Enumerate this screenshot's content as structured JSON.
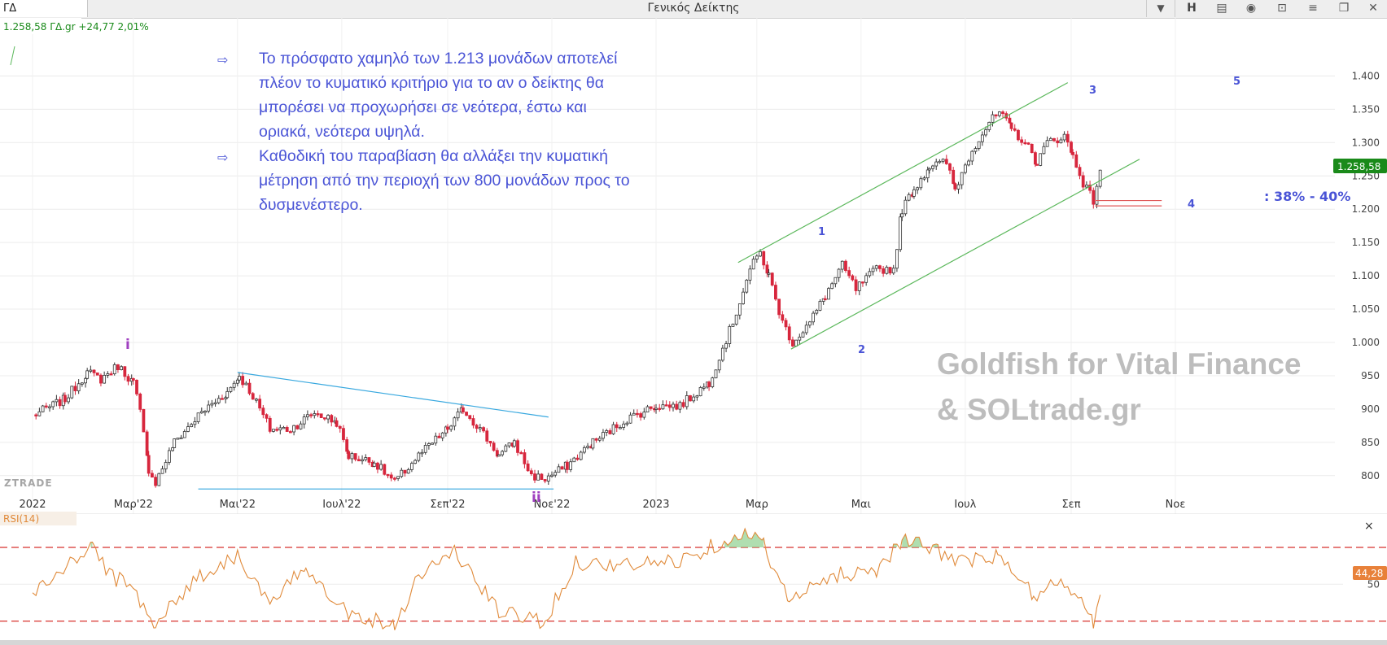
{
  "app": {
    "symbol": "ΓΔ",
    "title": "Γενικός Δείκτης",
    "toolbar": {
      "dropdown_icon": "chevron-down-icon",
      "h_label": "H"
    }
  },
  "colors": {
    "up_candle": "#333333",
    "down_candle": "#d7263d",
    "channel": "#5cb85c",
    "blue_lines": "#38a8df",
    "annotation": "#4a54d6",
    "rsi": "#e08a3a",
    "rsi_fill": "#8fd08f",
    "rsi_bounds": "#d8322f",
    "support": "#e05a5a",
    "watermark": "#bdbdbd",
    "price_badge": "#1a8a1a",
    "rsi_badge": "#e8813a"
  },
  "quote": {
    "text": "1.258,58 ΓΔ.gr +24,77 2,01%"
  },
  "annotations": {
    "paragraph1": [
      "Το πρόσφατο χαμηλό των 1.213 μονάδων αποτελεί",
      "πλέον το κυματικό κριτήριο για το αν ο δείκτης θα",
      "μπορέσει να προχωρήσει σε νεότερα, έστω και",
      "οριακά, νεότερα υψηλά."
    ],
    "paragraph2": [
      "Καθοδική του παραβίαση θα αλλάξει την κυματική",
      "μέτρηση από την περιοχή των 800 μονάδων προς το",
      "δυσμενέστερο."
    ],
    "retracement": ": 38% - 40%",
    "wave_labels": {
      "i": "i",
      "ii": "ii",
      "w1": "1",
      "w2": "2",
      "w3": "3",
      "w4": "4",
      "w5": "5"
    }
  },
  "watermark": {
    "line1": "Goldfish for Vital Finance",
    "line2": "& SOLtrade.gr"
  },
  "logo": "ZTRADE",
  "chart_data": [
    {
      "type": "candlestick",
      "title": "Γενικός Δείκτης",
      "x_ticks": [
        "2022",
        "Μαρ'22",
        "Μαι'22",
        "Ιουλ'22",
        "Σεπ'22",
        "Νοε'22",
        "2023",
        "Μαρ",
        "Μαι",
        "Ιουλ",
        "Σεπ",
        "Νοε"
      ],
      "y_ticks": [
        "1.400",
        "1.350",
        "1.300",
        "1.250",
        "1.200",
        "1.150",
        "1.100",
        "1.050",
        "1.000",
        "950",
        "900",
        "850",
        "800"
      ],
      "ylim": [
        780,
        1420
      ],
      "last_price": "1.258,58",
      "last_value": 1258.58,
      "anchors": [
        [
          "2022-01-01",
          890
        ],
        [
          "2022-01-20",
          915
        ],
        [
          "2022-02-02",
          955
        ],
        [
          "2022-02-10",
          945
        ],
        [
          "2022-02-20",
          965
        ],
        [
          "2022-03-01",
          940
        ],
        [
          "2022-03-05",
          895
        ],
        [
          "2022-03-10",
          810
        ],
        [
          "2022-03-14",
          790
        ],
        [
          "2022-03-25",
          850
        ],
        [
          "2022-04-10",
          895
        ],
        [
          "2022-04-25",
          925
        ],
        [
          "2022-05-02",
          950
        ],
        [
          "2022-05-10",
          920
        ],
        [
          "2022-05-20",
          870
        ],
        [
          "2022-06-01",
          870
        ],
        [
          "2022-06-15",
          895
        ],
        [
          "2022-06-28",
          880
        ],
        [
          "2022-07-05",
          830
        ],
        [
          "2022-07-20",
          820
        ],
        [
          "2022-08-01",
          790
        ],
        [
          "2022-08-15",
          830
        ],
        [
          "2022-09-01",
          870
        ],
        [
          "2022-09-10",
          900
        ],
        [
          "2022-09-20",
          870
        ],
        [
          "2022-10-01",
          830
        ],
        [
          "2022-10-10",
          850
        ],
        [
          "2022-10-20",
          800
        ],
        [
          "2022-10-28",
          795
        ],
        [
          "2022-11-10",
          815
        ],
        [
          "2022-11-25",
          850
        ],
        [
          "2022-12-15",
          885
        ],
        [
          "2023-01-01",
          905
        ],
        [
          "2023-01-15",
          905
        ],
        [
          "2023-02-01",
          940
        ],
        [
          "2023-02-15",
          1030
        ],
        [
          "2023-02-25",
          1110
        ],
        [
          "2023-03-03",
          1135
        ],
        [
          "2023-03-08",
          1100
        ],
        [
          "2023-03-16",
          1030
        ],
        [
          "2023-03-22",
          1000
        ],
        [
          "2023-04-01",
          1030
        ],
        [
          "2023-04-10",
          1070
        ],
        [
          "2023-04-20",
          1115
        ],
        [
          "2023-04-28",
          1080
        ],
        [
          "2023-05-10",
          1110
        ],
        [
          "2023-05-20",
          1110
        ],
        [
          "2023-05-25",
          1200
        ],
        [
          "2023-06-01",
          1230
        ],
        [
          "2023-06-10",
          1265
        ],
        [
          "2023-06-20",
          1270
        ],
        [
          "2023-06-25",
          1230
        ],
        [
          "2023-07-05",
          1290
        ],
        [
          "2023-07-15",
          1330
        ],
        [
          "2023-07-21",
          1345
        ],
        [
          "2023-07-28",
          1320
        ],
        [
          "2023-08-05",
          1300
        ],
        [
          "2023-08-12",
          1270
        ],
        [
          "2023-08-18",
          1300
        ],
        [
          "2023-08-28",
          1310
        ],
        [
          "2023-09-02",
          1280
        ],
        [
          "2023-09-08",
          1240
        ],
        [
          "2023-09-14",
          1213
        ],
        [
          "2023-09-18",
          1258.58
        ]
      ],
      "lines": [
        {
          "name": "channel-upper",
          "from": [
            "2023-02-18",
            1120
          ],
          "to": [
            "2023-08-30",
            1390
          ]
        },
        {
          "name": "channel-lower",
          "from": [
            "2023-03-21",
            990
          ],
          "to": [
            "2023-10-11",
            1275
          ]
        },
        {
          "name": "triangle-top",
          "from": [
            "2022-05-01",
            955
          ],
          "to": [
            "2022-10-30",
            888
          ]
        },
        {
          "name": "triangle-base",
          "from": [
            "2022-04-08",
            780
          ],
          "to": [
            "2022-11-02",
            780
          ]
        },
        {
          "name": "support-1213",
          "from": [
            "2023-09-15",
            1213
          ],
          "to": [
            "2023-10-24",
            1213
          ]
        },
        {
          "name": "support-1205",
          "from": [
            "2023-09-15",
            1205
          ],
          "to": [
            "2023-10-24",
            1205
          ]
        }
      ]
    },
    {
      "type": "line",
      "title": "RSI(14)",
      "current": "44,28",
      "current_value": 44.28,
      "y_ticks": [
        "50"
      ],
      "ylim": [
        25,
        90
      ],
      "bands": [
        30,
        70
      ],
      "anchors": [
        [
          "2022-01-01",
          45
        ],
        [
          "2022-01-25",
          62
        ],
        [
          "2022-02-05",
          72
        ],
        [
          "2022-02-15",
          55
        ],
        [
          "2022-03-01",
          48
        ],
        [
          "2022-03-14",
          28
        ],
        [
          "2022-04-05",
          52
        ],
        [
          "2022-05-01",
          66
        ],
        [
          "2022-05-20",
          38
        ],
        [
          "2022-06-10",
          60
        ],
        [
          "2022-07-05",
          34
        ],
        [
          "2022-08-01",
          28
        ],
        [
          "2022-08-15",
          55
        ],
        [
          "2022-09-05",
          68
        ],
        [
          "2022-10-01",
          35
        ],
        [
          "2022-10-28",
          30
        ],
        [
          "2022-11-15",
          62
        ],
        [
          "2022-12-15",
          60
        ],
        [
          "2023-01-15",
          63
        ],
        [
          "2023-02-20",
          78
        ],
        [
          "2023-03-05",
          72
        ],
        [
          "2023-03-20",
          40
        ],
        [
          "2023-04-15",
          55
        ],
        [
          "2023-05-10",
          58
        ],
        [
          "2023-05-25",
          74
        ],
        [
          "2023-06-15",
          68
        ],
        [
          "2023-07-01",
          62
        ],
        [
          "2023-07-20",
          65
        ],
        [
          "2023-08-10",
          44
        ],
        [
          "2023-08-28",
          52
        ],
        [
          "2023-09-14",
          30
        ],
        [
          "2023-09-18",
          44.28
        ]
      ]
    }
  ]
}
